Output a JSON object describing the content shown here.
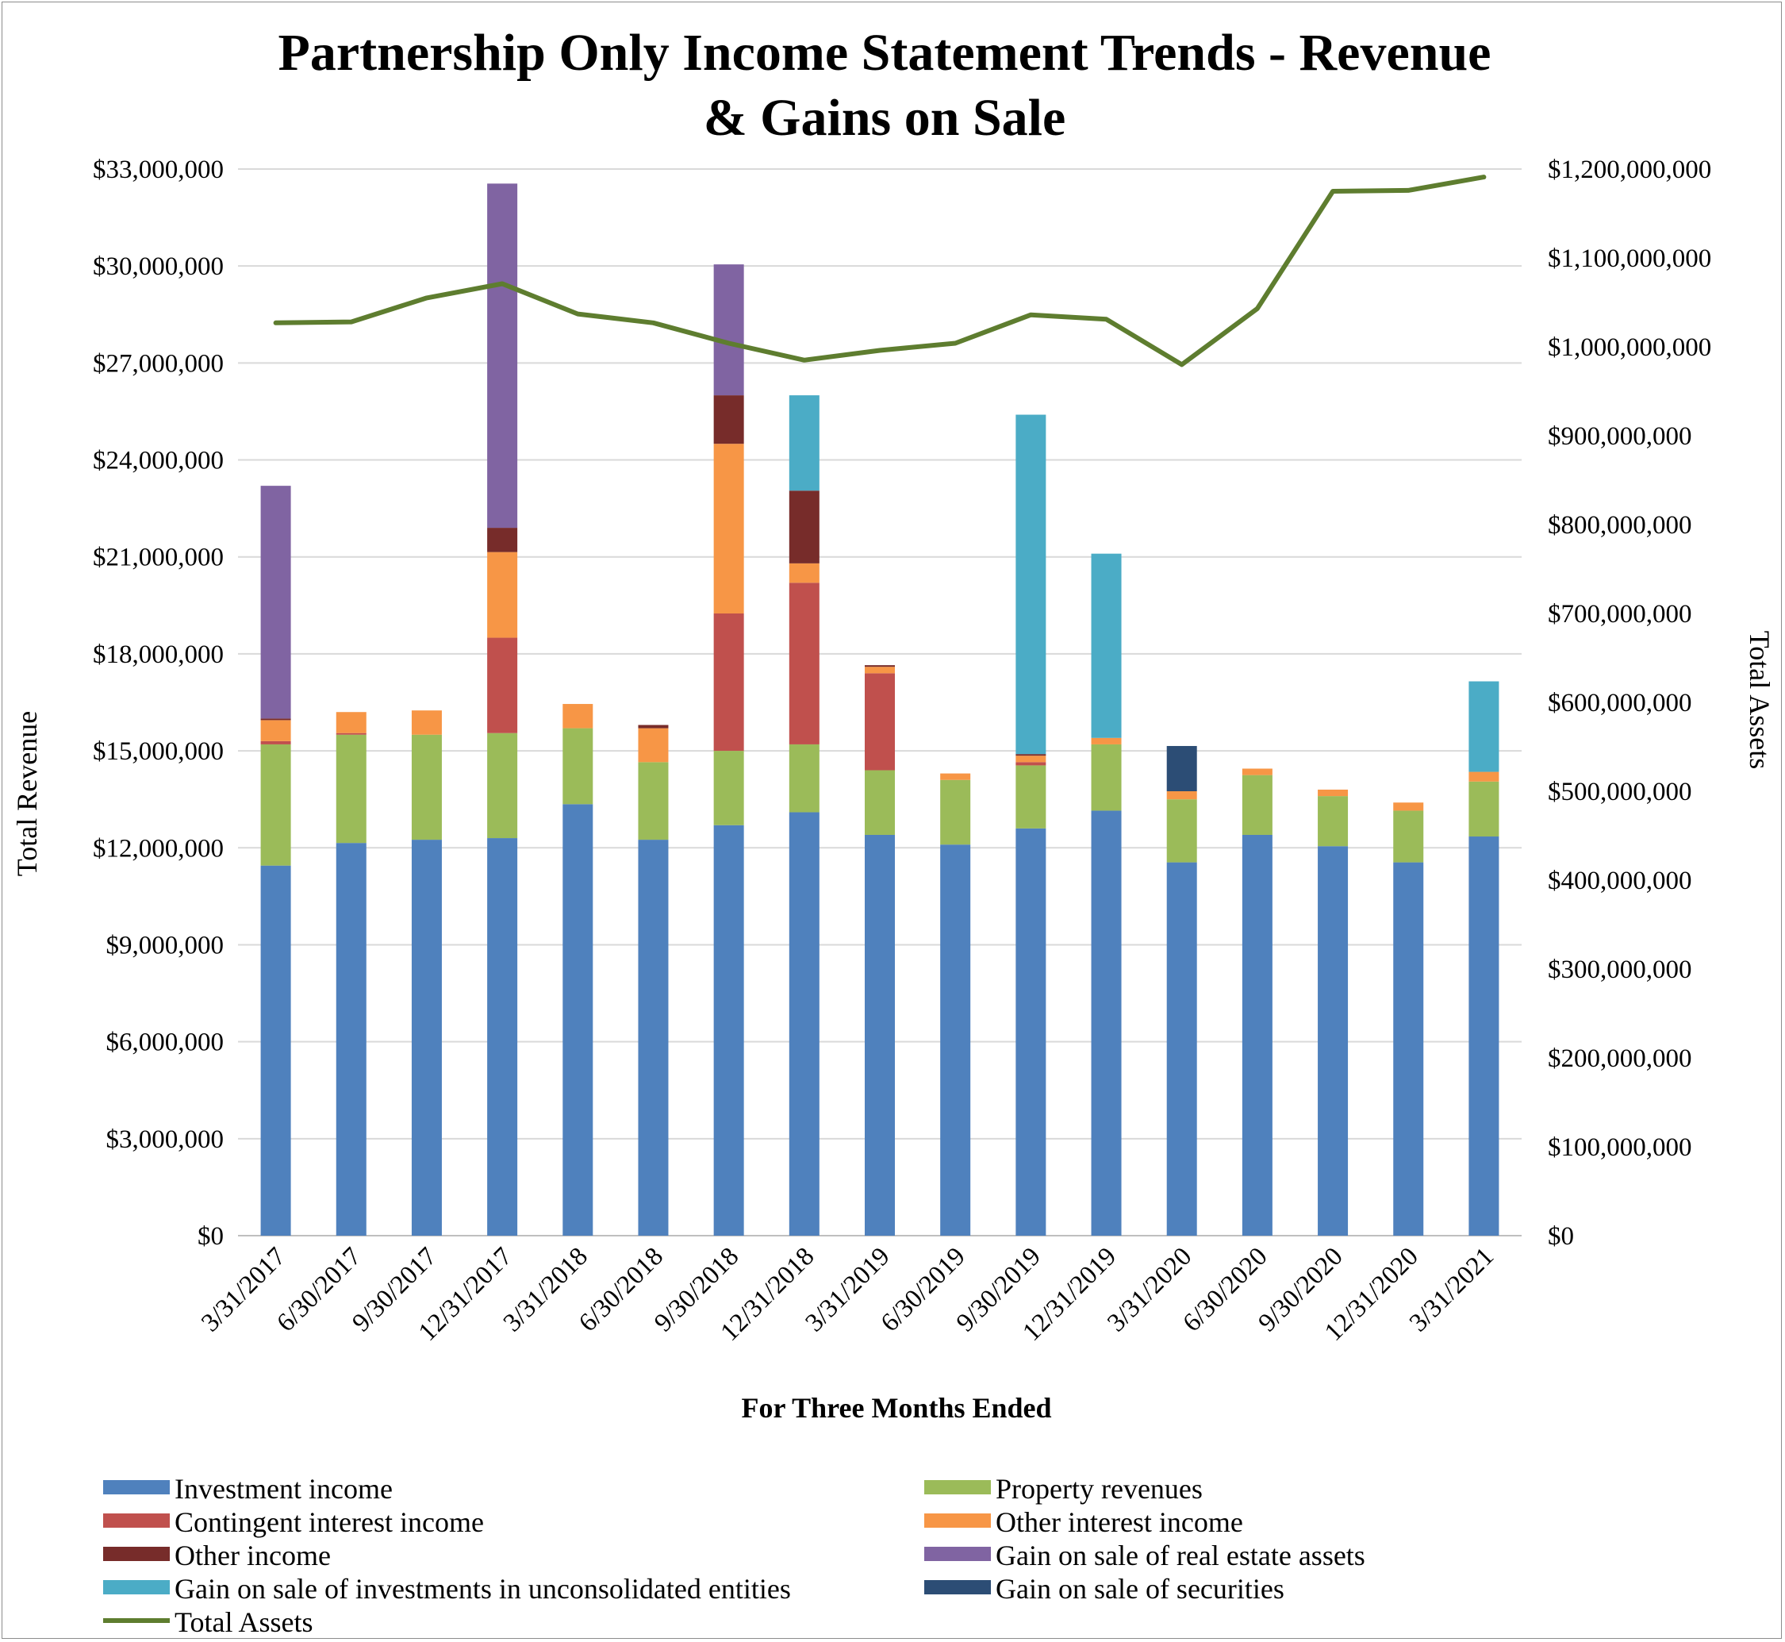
{
  "chart_data": {
    "type": "bar",
    "stacked": true,
    "title_lines": [
      "Partnership Only Income Statement Trends - Revenue",
      "& Gains on Sale"
    ],
    "xlabel": "For Three Months Ended",
    "ylabel": "Total Revenue",
    "y2label": "Total Assets",
    "ylim": [
      0,
      33000000
    ],
    "y2lim": [
      0,
      1200000000
    ],
    "yticks": [
      "$0",
      "$3,000,000",
      "$6,000,000",
      "$9,000,000",
      "$12,000,000",
      "$15,000,000",
      "$18,000,000",
      "$21,000,000",
      "$24,000,000",
      "$27,000,000",
      "$30,000,000",
      "$33,000,000"
    ],
    "y2ticks": [
      "$0",
      "$100,000,000",
      "$200,000,000",
      "$300,000,000",
      "$400,000,000",
      "$500,000,000",
      "$600,000,000",
      "$700,000,000",
      "$800,000,000",
      "$900,000,000",
      "$1,000,000,000",
      "$1,100,000,000",
      "$1,200,000,000"
    ],
    "grid": true,
    "legend_position": "bottom",
    "categories": [
      "3/31/2017",
      "6/30/2017",
      "9/30/2017",
      "12/31/2017",
      "3/31/2018",
      "6/30/2018",
      "9/30/2018",
      "12/31/2018",
      "3/31/2019",
      "6/30/2019",
      "9/30/2019",
      "12/31/2019",
      "3/31/2020",
      "6/30/2020",
      "9/30/2020",
      "12/31/2020",
      "3/31/2021"
    ],
    "series": [
      {
        "name": "Investment income",
        "color": "#4f81bd",
        "values": [
          11450000,
          12150000,
          12250000,
          12300000,
          13350000,
          12250000,
          12700000,
          13100000,
          12400000,
          12100000,
          12600000,
          13150000,
          11550000,
          12400000,
          12050000,
          11550000,
          12350000
        ]
      },
      {
        "name": "Property revenues",
        "color": "#9bbb59",
        "values": [
          3750000,
          3350000,
          3250000,
          3250000,
          2350000,
          2400000,
          2300000,
          2100000,
          2000000,
          2000000,
          1950000,
          2050000,
          1950000,
          1850000,
          1550000,
          1600000,
          1700000
        ]
      },
      {
        "name": "Contingent interest income",
        "color": "#c0504d",
        "values": [
          100000,
          50000,
          0,
          2950000,
          0,
          0,
          4250000,
          5000000,
          3000000,
          0,
          100000,
          0,
          0,
          0,
          0,
          0,
          0
        ]
      },
      {
        "name": "Other interest income",
        "color": "#f79646",
        "values": [
          650000,
          650000,
          750000,
          2650000,
          750000,
          1050000,
          5250000,
          600000,
          200000,
          200000,
          200000,
          200000,
          250000,
          200000,
          200000,
          250000,
          300000
        ]
      },
      {
        "name": "Other income",
        "color": "#772c2a",
        "values": [
          50000,
          0,
          0,
          750000,
          0,
          100000,
          1500000,
          2250000,
          50000,
          0,
          50000,
          0,
          0,
          0,
          0,
          0,
          0
        ]
      },
      {
        "name": "Gain on sale of real estate assets",
        "color": "#8064a2",
        "values": [
          7200000,
          0,
          0,
          10650000,
          0,
          0,
          4050000,
          0,
          0,
          0,
          0,
          0,
          0,
          0,
          0,
          0,
          0
        ]
      },
      {
        "name": "Gain on sale of investments in unconsolidated entities",
        "color": "#4bacc6",
        "values": [
          0,
          0,
          0,
          0,
          0,
          0,
          0,
          2950000,
          0,
          0,
          10500000,
          5700000,
          0,
          0,
          0,
          0,
          2800000
        ]
      },
      {
        "name": "Gain on sale of securities",
        "color": "#2c4d75",
        "values": [
          0,
          0,
          0,
          0,
          0,
          0,
          0,
          0,
          0,
          0,
          0,
          0,
          1400000,
          0,
          0,
          0,
          0
        ]
      }
    ],
    "line": {
      "name": "Total Assets",
      "color": "#5e7d2f",
      "axis": "right",
      "values": [
        1027000000,
        1028000000,
        1055000000,
        1071000000,
        1037000000,
        1027000000,
        1004000000,
        985000000,
        996000000,
        1004000000,
        1036000000,
        1031000000,
        980000000,
        1043000000,
        1175000000,
        1176000000,
        1191000000
      ]
    }
  }
}
